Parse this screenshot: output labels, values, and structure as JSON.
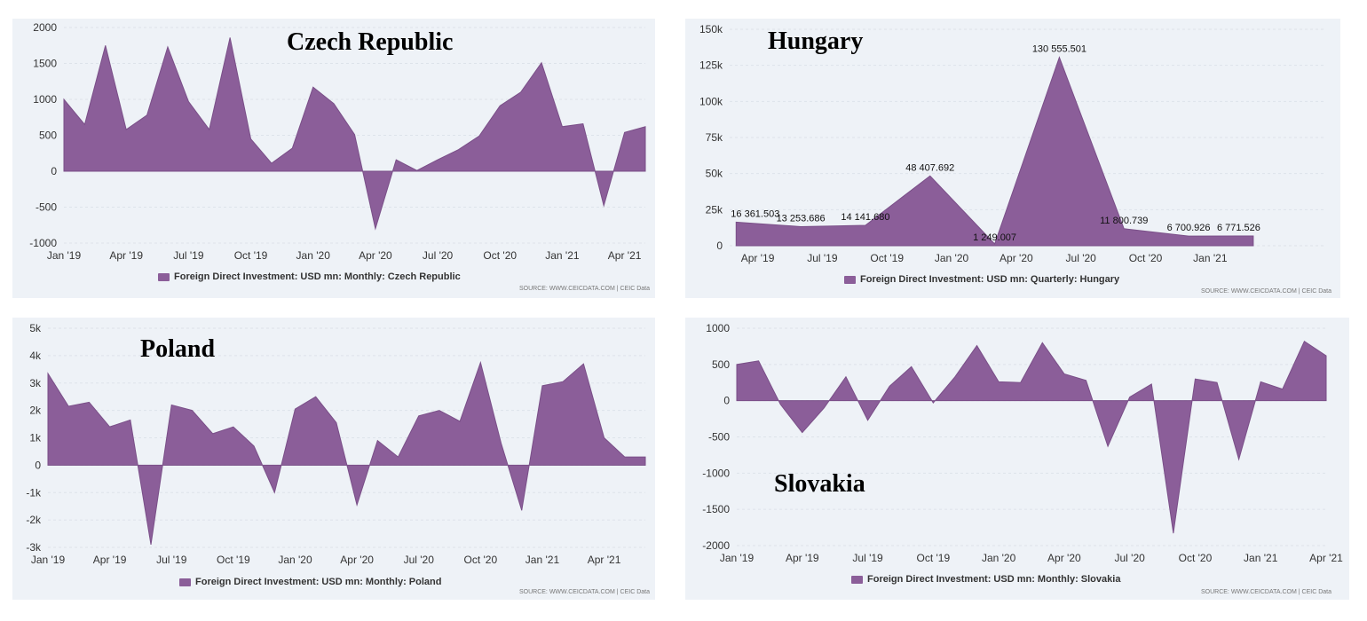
{
  "source_text": "SOURCE: WWW.CEICDATA.COM | CEIC Data",
  "colors": {
    "area": "#8b5e99",
    "background": "#eef2f7",
    "grid": "#dde3ea"
  },
  "chart_data": [
    {
      "id": "cz",
      "type": "area",
      "title": "Czech Republic",
      "legend": "Foreign Direct Investment: USD mn: Monthly: Czech Republic",
      "ylim": [
        -1000,
        2000
      ],
      "yticks": [
        -1000,
        -500,
        0,
        500,
        1000,
        1500,
        2000
      ],
      "ytick_labels": [
        "-1000",
        "-500",
        "0",
        "500",
        "1000",
        "1500",
        "2000"
      ],
      "xlim": [
        0,
        28
      ],
      "xticks": [
        0,
        3,
        6,
        9,
        12,
        15,
        18,
        21,
        24,
        27
      ],
      "xtick_labels": [
        "Jan '19",
        "Apr '19",
        "Jul '19",
        "Oct '19",
        "Jan '20",
        "Apr '20",
        "Jul '20",
        "Oct '20",
        "Jan '21",
        "Apr '21"
      ],
      "x": [
        "2019-01",
        "2019-02",
        "2019-03",
        "2019-04",
        "2019-05",
        "2019-06",
        "2019-07",
        "2019-08",
        "2019-09",
        "2019-10",
        "2019-11",
        "2019-12",
        "2020-01",
        "2020-02",
        "2020-03",
        "2020-04",
        "2020-05",
        "2020-06",
        "2020-07",
        "2020-08",
        "2020-09",
        "2020-10",
        "2020-11",
        "2020-12",
        "2021-01",
        "2021-02",
        "2021-03",
        "2021-04",
        "2021-05"
      ],
      "values": [
        1000,
        650,
        1750,
        580,
        780,
        1730,
        970,
        580,
        1860,
        450,
        110,
        320,
        1170,
        940,
        510,
        -800,
        160,
        10,
        160,
        300,
        490,
        910,
        1100,
        1510,
        620,
        660,
        -480,
        540,
        620
      ],
      "data_labels": []
    },
    {
      "id": "hu",
      "type": "area",
      "title": "Hungary",
      "legend": "Foreign Direct Investment: USD mn: Quarterly: Hungary",
      "ylim": [
        0,
        150000
      ],
      "yticks": [
        0,
        25000,
        50000,
        75000,
        100000,
        125000,
        150000
      ],
      "ytick_labels": [
        "0",
        "25k",
        "50k",
        "75k",
        "100k",
        "125k",
        "150k"
      ],
      "xlim": [
        -0.3,
        27.3
      ],
      "xticks": [
        1,
        4,
        7,
        10,
        13,
        16,
        19,
        22
      ],
      "xtick_labels": [
        "Apr '19",
        "Jul '19",
        "Oct '19",
        "Jan '20",
        "Apr '20",
        "Jul '20",
        "Oct '20",
        "Jan '21"
      ],
      "x": [
        "2019-03",
        "2019-06",
        "2019-09",
        "2019-12",
        "2020-03",
        "2020-06",
        "2020-09",
        "2020-12",
        "2021-03"
      ],
      "values": [
        16361.503,
        13253.686,
        14141.68,
        48407.692,
        1249.007,
        130555.501,
        11800.739,
        6700.926,
        6771.526
      ],
      "data_labels": [
        "16 361.503",
        "13 253.686",
        "14 141.680",
        "48 407.692",
        "1 249.007",
        "130 555.501",
        "11 800.739",
        "6 700.926",
        "6 771.526"
      ]
    },
    {
      "id": "pl",
      "type": "area",
      "title": "Poland",
      "legend": "Foreign Direct Investment: USD mn: Monthly: Poland",
      "ylim": [
        -3000,
        5000
      ],
      "yticks": [
        -3000,
        -2000,
        -1000,
        0,
        1000,
        2000,
        3000,
        4000,
        5000
      ],
      "ytick_labels": [
        "-3k",
        "-2k",
        "-1k",
        "0",
        "1k",
        "2k",
        "3k",
        "4k",
        "5k"
      ],
      "xlim": [
        0,
        29
      ],
      "xticks": [
        0,
        3,
        6,
        9,
        12,
        15,
        18,
        21,
        24,
        27
      ],
      "xtick_labels": [
        "Jan '19",
        "Apr '19",
        "Jul '19",
        "Oct '19",
        "Jan '20",
        "Apr '20",
        "Jul '20",
        "Oct '20",
        "Jan '21",
        "Apr '21"
      ],
      "x": [
        "2019-01",
        "2019-02",
        "2019-03",
        "2019-04",
        "2019-05",
        "2019-06",
        "2019-07",
        "2019-08",
        "2019-09",
        "2019-10",
        "2019-11",
        "2019-12",
        "2020-01",
        "2020-02",
        "2020-03",
        "2020-04",
        "2020-05",
        "2020-06",
        "2020-07",
        "2020-08",
        "2020-09",
        "2020-10",
        "2020-11",
        "2020-12",
        "2021-01",
        "2021-02",
        "2021-03",
        "2021-04",
        "2021-05",
        "2021-06"
      ],
      "values": [
        3350,
        2150,
        2300,
        1400,
        1650,
        -2900,
        2200,
        2000,
        1150,
        1400,
        700,
        -1000,
        2050,
        2500,
        1550,
        -1450,
        900,
        300,
        1800,
        2000,
        1600,
        3750,
        800,
        -1650,
        2900,
        3050,
        3700,
        1000,
        300,
        300
      ],
      "data_labels": []
    },
    {
      "id": "sk",
      "type": "area",
      "title": "Slovakia",
      "legend": "Foreign Direct Investment: USD mn: Monthly: Slovakia",
      "ylim": [
        -2000,
        1000
      ],
      "yticks": [
        -2000,
        -1500,
        -1000,
        -500,
        0,
        500,
        1000
      ],
      "ytick_labels": [
        "-2000",
        "-1500",
        "-1000",
        "-500",
        "0",
        "500",
        "1000"
      ],
      "xlim": [
        0,
        27
      ],
      "xticks": [
        0,
        3,
        6,
        9,
        12,
        15,
        18,
        21,
        24,
        27
      ],
      "xtick_labels": [
        "Jan '19",
        "Apr '19",
        "Jul '19",
        "Oct '19",
        "Jan '20",
        "Apr '20",
        "Jul '20",
        "Oct '20",
        "Jan '21",
        "Apr '21"
      ],
      "x": [
        "2019-01",
        "2019-02",
        "2019-03",
        "2019-04",
        "2019-05",
        "2019-06",
        "2019-07",
        "2019-08",
        "2019-09",
        "2019-10",
        "2019-11",
        "2019-12",
        "2020-01",
        "2020-02",
        "2020-03",
        "2020-04",
        "2020-05",
        "2020-06",
        "2020-07",
        "2020-08",
        "2020-09",
        "2020-10",
        "2020-11",
        "2020-12",
        "2021-01",
        "2021-02",
        "2021-03",
        "2021-04"
      ],
      "values": [
        500,
        550,
        -50,
        -440,
        -100,
        330,
        -270,
        200,
        470,
        -30,
        330,
        760,
        260,
        250,
        800,
        370,
        280,
        -630,
        50,
        230,
        -1830,
        300,
        250,
        -810,
        260,
        160,
        820,
        620
      ],
      "data_labels": []
    }
  ]
}
